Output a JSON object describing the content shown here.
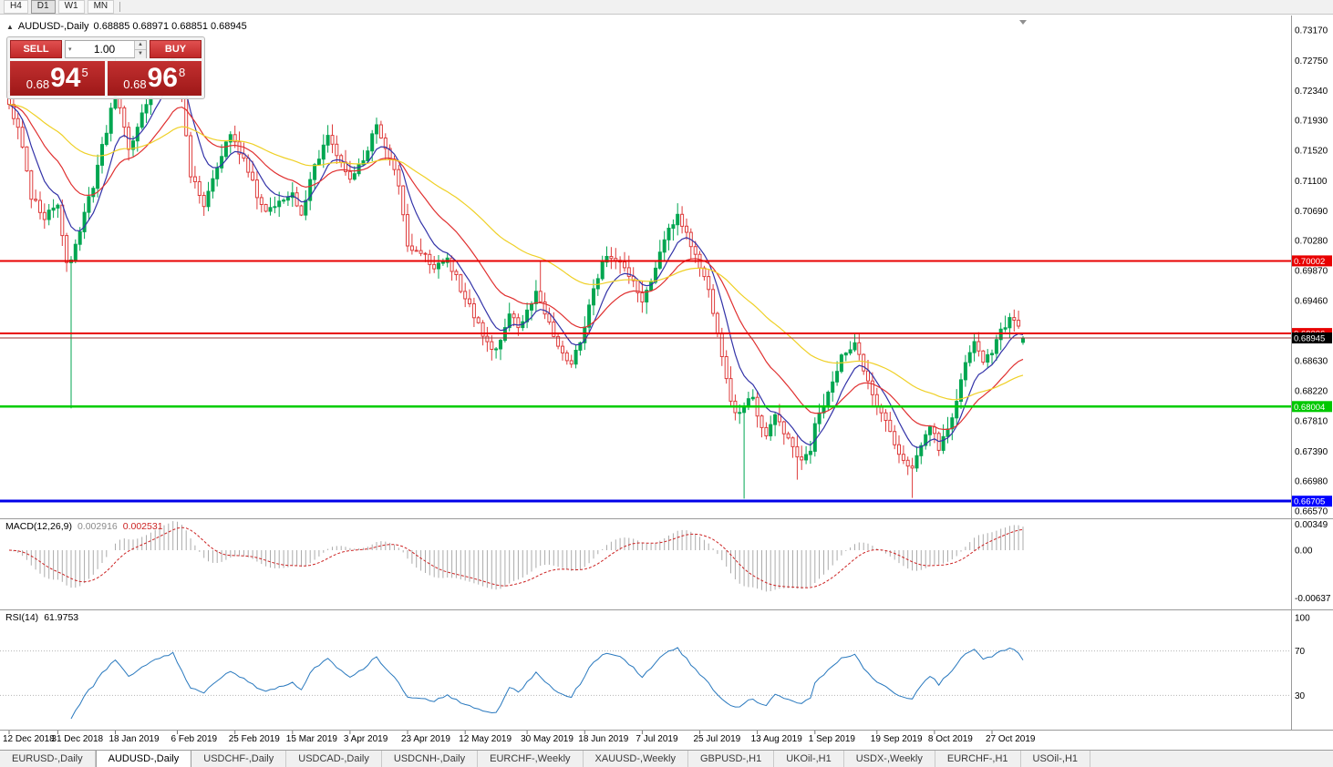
{
  "toolbar": {
    "timeframes": [
      "H4",
      "D1",
      "W1",
      "MN"
    ],
    "active": "D1"
  },
  "chart_header": {
    "symbol": "AUDUSD-,Daily",
    "ohlc": "0.68885 0.68971 0.68851 0.68945"
  },
  "trade_panel": {
    "sell_label": "SELL",
    "buy_label": "BUY",
    "volume": "1.00",
    "sell_price": {
      "prefix": "0.68",
      "big": "94",
      "sup": "5"
    },
    "buy_price": {
      "prefix": "0.68",
      "big": "96",
      "sup": "8"
    }
  },
  "price_axis": {
    "ticks": [
      "0.73170",
      "0.72750",
      "0.72340",
      "0.71930",
      "0.71520",
      "0.71100",
      "0.70690",
      "0.70280",
      "0.69870",
      "0.69460",
      "0.68630",
      "0.68220",
      "0.67810",
      "0.67390",
      "0.66980",
      "0.66570"
    ],
    "special_labels": [
      {
        "text": "0.70002",
        "price": 0.70002,
        "bg": "#e80000",
        "fg": "#ffffff"
      },
      {
        "text": "0.69006",
        "price": 0.69006,
        "bg": "#e80000",
        "fg": "#ffffff"
      },
      {
        "text": "0.68945",
        "price": 0.68945,
        "bg": "#000000",
        "fg": "#ffffff"
      },
      {
        "text": "0.68004",
        "price": 0.68004,
        "bg": "#00c800",
        "fg": "#ffffff"
      },
      {
        "text": "0.66705",
        "price": 0.66705,
        "bg": "#0000ff",
        "fg": "#ffffff"
      }
    ]
  },
  "macd": {
    "name": "MACD(12,26,9)",
    "value_main": "0.002916",
    "value_signal": "0.002531",
    "fast": 12,
    "slow": 26,
    "signal": 9,
    "axis": [
      {
        "text": "0.00349",
        "v": 0.00349
      },
      {
        "text": "0.00",
        "v": 0
      },
      {
        "text": "-0.00637",
        "v": -0.00637
      }
    ]
  },
  "rsi": {
    "name": "RSI(14)",
    "value": "61.9753",
    "period": 14,
    "axis": [
      {
        "text": "100",
        "v": 100
      },
      {
        "text": "70",
        "v": 70
      },
      {
        "text": "30",
        "v": 30
      }
    ],
    "levels": [
      70,
      30
    ]
  },
  "date_axis": [
    {
      "label": "12 Dec 2018",
      "i": 0
    },
    {
      "label": "31 Dec 2018",
      "i": 11
    },
    {
      "label": "18 Jan 2019",
      "i": 24
    },
    {
      "label": "6 Feb 2019",
      "i": 38
    },
    {
      "label": "25 Feb 2019",
      "i": 51
    },
    {
      "label": "15 Mar 2019",
      "i": 64
    },
    {
      "label": "3 Apr 2019",
      "i": 77
    },
    {
      "label": "23 Apr 2019",
      "i": 90
    },
    {
      "label": "12 May 2019",
      "i": 103
    },
    {
      "label": "30 May 2019",
      "i": 117
    },
    {
      "label": "18 Jun 2019",
      "i": 130
    },
    {
      "label": "7 Jul 2019",
      "i": 143
    },
    {
      "label": "25 Jul 2019",
      "i": 156
    },
    {
      "label": "13 Aug 2019",
      "i": 169
    },
    {
      "label": "1 Sep 2019",
      "i": 182
    },
    {
      "label": "19 Sep 2019",
      "i": 196
    },
    {
      "label": "8 Oct 2019",
      "i": 209
    },
    {
      "label": "27 Oct 2019",
      "i": 222
    }
  ],
  "tabs": {
    "active_index": 1,
    "items": [
      "EURUSD-,Daily",
      "AUDUSD-,Daily",
      "USDCHF-,Daily",
      "USDCAD-,Daily",
      "USDCNH-,Daily",
      "EURCHF-,Weekly",
      "XAUUSD-,Weekly",
      "GBPUSD-,H1",
      "UKOil-,H1",
      "USDX-,Weekly",
      "EURCHF-,H1",
      "USOil-,H1"
    ]
  },
  "chart_data": {
    "type": "candlestick",
    "symbol": "AUDUSD",
    "timeframe": "Daily",
    "ylim": [
      0.66495,
      0.73345
    ],
    "n_candles": 230,
    "first_open": 0.7232,
    "last_ohlc": {
      "o": 0.68885,
      "h": 0.68971,
      "l": 0.68851,
      "c": 0.68945
    },
    "close_anchors_estimated": [
      [
        0,
        0.7215
      ],
      [
        2,
        0.7185
      ],
      [
        5,
        0.709
      ],
      [
        8,
        0.706
      ],
      [
        11,
        0.708
      ],
      [
        13,
        0.6995
      ],
      [
        14,
        0.7005
      ],
      [
        16,
        0.704
      ],
      [
        19,
        0.7105
      ],
      [
        22,
        0.718
      ],
      [
        24,
        0.7235
      ],
      [
        27,
        0.7155
      ],
      [
        30,
        0.72
      ],
      [
        33,
        0.7245
      ],
      [
        37,
        0.729
      ],
      [
        39,
        0.723
      ],
      [
        41,
        0.712
      ],
      [
        44,
        0.7075
      ],
      [
        47,
        0.713
      ],
      [
        50,
        0.7175
      ],
      [
        53,
        0.714
      ],
      [
        56,
        0.709
      ],
      [
        58,
        0.7065
      ],
      [
        61,
        0.7085
      ],
      [
        64,
        0.7095
      ],
      [
        66,
        0.7065
      ],
      [
        69,
        0.713
      ],
      [
        72,
        0.717
      ],
      [
        75,
        0.7135
      ],
      [
        77,
        0.7115
      ],
      [
        80,
        0.7135
      ],
      [
        83,
        0.719
      ],
      [
        85,
        0.7155
      ],
      [
        88,
        0.7105
      ],
      [
        90,
        0.7025
      ],
      [
        93,
        0.701
      ],
      [
        96,
        0.6992
      ],
      [
        99,
        0.7005
      ],
      [
        102,
        0.6962
      ],
      [
        104,
        0.694
      ],
      [
        107,
        0.6902
      ],
      [
        109,
        0.6875
      ],
      [
        111,
        0.6892
      ],
      [
        113,
        0.693
      ],
      [
        115,
        0.6912
      ],
      [
        117,
        0.6932
      ],
      [
        119,
        0.6958
      ],
      [
        121,
        0.6932
      ],
      [
        123,
        0.69
      ],
      [
        125,
        0.6872
      ],
      [
        127,
        0.6855
      ],
      [
        129,
        0.6892
      ],
      [
        132,
        0.696
      ],
      [
        135,
        0.701
      ],
      [
        137,
        0.7
      ],
      [
        140,
        0.6982
      ],
      [
        143,
        0.6945
      ],
      [
        146,
        0.6992
      ],
      [
        149,
        0.7042
      ],
      [
        151,
        0.7062
      ],
      [
        153,
        0.7042
      ],
      [
        156,
        0.6992
      ],
      [
        158,
        0.6962
      ],
      [
        160,
        0.6905
      ],
      [
        162,
        0.6835
      ],
      [
        164,
        0.679
      ],
      [
        166,
        0.68
      ],
      [
        168,
        0.6812
      ],
      [
        169,
        0.6788
      ],
      [
        171,
        0.6755
      ],
      [
        173,
        0.6788
      ],
      [
        175,
        0.6762
      ],
      [
        177,
        0.6742
      ],
      [
        179,
        0.6722
      ],
      [
        181,
        0.6742
      ],
      [
        182,
        0.6772
      ],
      [
        184,
        0.6805
      ],
      [
        186,
        0.6832
      ],
      [
        188,
        0.6872
      ],
      [
        191,
        0.6885
      ],
      [
        193,
        0.6852
      ],
      [
        195,
        0.6815
      ],
      [
        197,
        0.6792
      ],
      [
        199,
        0.6765
      ],
      [
        201,
        0.6735
      ],
      [
        204,
        0.6715
      ],
      [
        206,
        0.6752
      ],
      [
        208,
        0.6775
      ],
      [
        210,
        0.6745
      ],
      [
        212,
        0.6765
      ],
      [
        214,
        0.6812
      ],
      [
        216,
        0.6862
      ],
      [
        218,
        0.6888
      ],
      [
        220,
        0.6865
      ],
      [
        222,
        0.6878
      ],
      [
        224,
        0.6902
      ],
      [
        226,
        0.6922
      ],
      [
        228,
        0.6912
      ],
      [
        229,
        0.68945
      ]
    ],
    "special_lows": [
      {
        "i": 14,
        "low": 0.6798
      },
      {
        "i": 166,
        "low": 0.6674
      },
      {
        "i": 178,
        "low": 0.67
      },
      {
        "i": 204,
        "low": 0.6675
      }
    ],
    "special_highs": [
      {
        "i": 24,
        "high": 0.7287
      },
      {
        "i": 37,
        "high": 0.7302
      },
      {
        "i": 120,
        "high": 0.6999
      }
    ],
    "candle_colors": {
      "bull": "#00a651",
      "bear": "#de3b3b",
      "bear_fill": "#ffffff"
    },
    "moving_averages": [
      {
        "period": 8,
        "color": "#3333a8"
      },
      {
        "period": 21,
        "color": "#e03030"
      },
      {
        "period": 55,
        "color": "#efd026"
      }
    ],
    "hlines": [
      {
        "price": 0.70002,
        "color": "#e80000",
        "width": 2
      },
      {
        "price": 0.69006,
        "color": "#e80000",
        "width": 2
      },
      {
        "price": 0.68945,
        "color": "#993333",
        "width": 1
      },
      {
        "price": 0.68004,
        "color": "#00cc00",
        "width": 2.5
      },
      {
        "price": 0.66705,
        "color": "#0000e8",
        "width": 3
      }
    ],
    "macd_colors": {
      "histogram": "#ababab",
      "signal": "#cc2222"
    },
    "rsi_color": "#2878be"
  }
}
